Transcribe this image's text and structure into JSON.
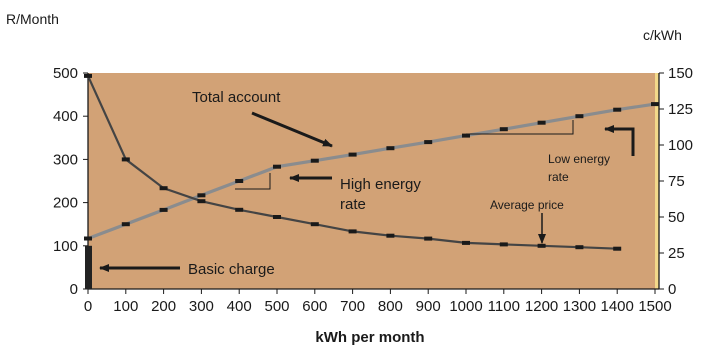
{
  "chart_data": {
    "type": "line",
    "title": "",
    "xlabel": "kWh per month",
    "ylabel_left": "R/Month",
    "ylabel_right": "c/kWh",
    "xlim": [
      0,
      1500
    ],
    "ylim_left": [
      0,
      500
    ],
    "ylim_right": [
      0,
      150
    ],
    "x_ticks": [
      0,
      100,
      200,
      300,
      400,
      500,
      600,
      700,
      800,
      900,
      1000,
      1100,
      1200,
      1300,
      1400,
      1500
    ],
    "y_left_ticks": [
      0,
      100,
      200,
      300,
      400,
      500
    ],
    "y_right_ticks": [
      0,
      25,
      50,
      75,
      100,
      125,
      150
    ],
    "grid": false,
    "background_color": "#d2a276",
    "series": [
      {
        "name": "Total account",
        "axis": "left",
        "color": "#8a8c8e",
        "x": [
          0,
          100,
          200,
          300,
          400,
          500,
          600,
          700,
          800,
          900,
          1000,
          1100,
          1200,
          1300,
          1400,
          1500
        ],
        "y": [
          117,
          150,
          183,
          217,
          250,
          283,
          297,
          311,
          326,
          340,
          355,
          370,
          385,
          400,
          415,
          428
        ]
      },
      {
        "name": "Average price",
        "axis": "right",
        "color": "#444444",
        "x": [
          0,
          100,
          200,
          300,
          400,
          500,
          600,
          700,
          800,
          900,
          1000,
          1100,
          1200,
          1300,
          1400
        ],
        "y": [
          148,
          90,
          70,
          61,
          55,
          50,
          45,
          40,
          37,
          35,
          32,
          31,
          30,
          29,
          28
        ]
      }
    ],
    "basic_charge_bar": {
      "x": 0,
      "value": 100
    },
    "annotations": {
      "total_account": "Total account",
      "high_energy_rate_line1": "High energy",
      "high_energy_rate_line2": "rate",
      "low_energy_rate_line1": "Low energy",
      "low_energy_rate_line2": "rate",
      "average_price": "Average price",
      "basic_charge": "Basic charge"
    },
    "colors": {
      "plot_bg": "#d2a276",
      "total_line": "#8a8c8e",
      "avg_line": "#444444",
      "right_axis_strip": "#f3d98a",
      "text": "#1a1a1a"
    }
  }
}
